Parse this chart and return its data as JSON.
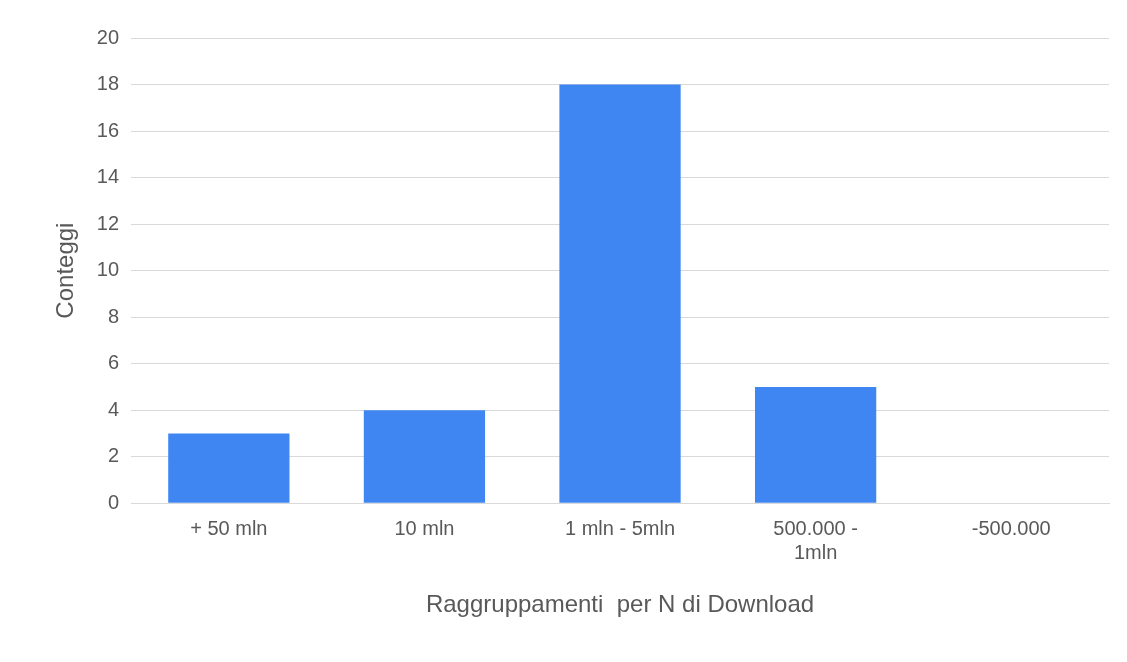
{
  "chart_data": {
    "type": "bar",
    "xlabel": "Raggruppamenti  per N di Download",
    "ylabel": "Conteggi",
    "categories": [
      "+ 50 mln",
      "10 mln",
      "1 mln - 5mln",
      "500.000 - 1mln",
      "-500.000"
    ],
    "values": [
      3,
      4,
      18,
      5,
      0
    ],
    "color": "#3f86f3",
    "ylim": [
      0,
      20
    ],
    "yticks": [
      0,
      2,
      4,
      6,
      8,
      10,
      12,
      14,
      16,
      18,
      20
    ],
    "grid": "y",
    "legend": false
  }
}
